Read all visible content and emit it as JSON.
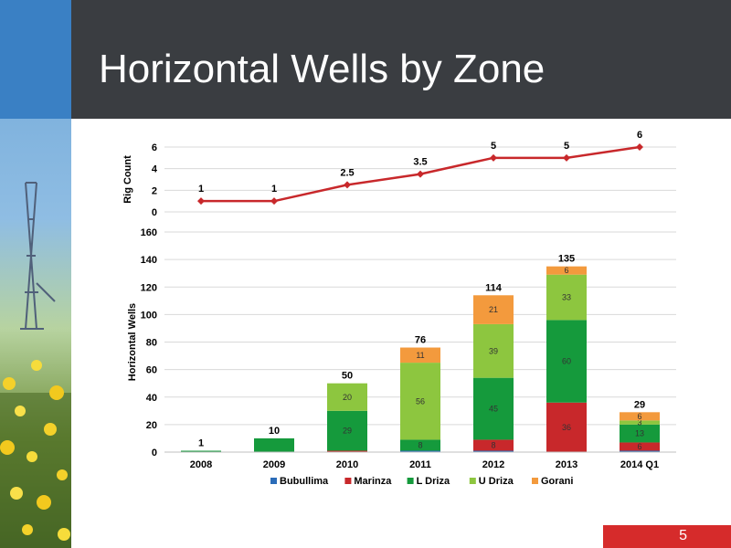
{
  "slide": {
    "title": "Horizontal Wells by Zone",
    "page_number": "5",
    "colors": {
      "header_bg": "#3a3d41",
      "accent_blue": "#3a80c4",
      "page_badge": "#d62b2b"
    },
    "images": [
      "oil-rig-photo",
      "yellow-wildflowers-photo"
    ]
  },
  "chart_data": [
    {
      "type": "line",
      "ylabel": "Rig Count",
      "ylim": [
        0,
        6
      ],
      "yticks": [
        0,
        2,
        4,
        6
      ],
      "categories": [
        "2008",
        "2009",
        "2010",
        "2011",
        "2012",
        "2013",
        "2014 Q1"
      ],
      "series": [
        {
          "values": [
            1,
            1,
            2.5,
            3.5,
            5,
            5,
            6
          ],
          "labels": [
            "1",
            "1",
            "2.5",
            "3.5",
            "5",
            "5",
            "6"
          ],
          "color": "#c8282b"
        }
      ],
      "grid": true
    },
    {
      "type": "bar",
      "stacked": true,
      "ylabel": "Horizontal Wells",
      "ylim": [
        0,
        160
      ],
      "yticks": [
        0,
        20,
        40,
        60,
        80,
        100,
        120,
        140,
        160
      ],
      "categories": [
        "2008",
        "2009",
        "2010",
        "2011",
        "2012",
        "2013",
        "2014 Q1"
      ],
      "series": [
        {
          "name": "Bubullima",
          "color": "#2b6cb8",
          "values": [
            0,
            0,
            0,
            1,
            1,
            0,
            1
          ],
          "labels": [
            "",
            "",
            "",
            "",
            "",
            "",
            ""
          ]
        },
        {
          "name": "Marinza",
          "color": "#c8282b",
          "values": [
            0,
            0,
            1,
            0,
            8,
            36,
            6
          ],
          "labels": [
            "",
            "",
            "",
            "",
            "8",
            "36",
            "6"
          ]
        },
        {
          "name": "L Driza",
          "color": "#159a3c",
          "values": [
            1,
            10,
            29,
            8,
            45,
            60,
            13
          ],
          "labels": [
            "",
            "",
            "29",
            "8",
            "45",
            "60",
            "13"
          ]
        },
        {
          "name": "U Driza",
          "color": "#8dc63f",
          "values": [
            0,
            0,
            20,
            56,
            39,
            33,
            3
          ],
          "labels": [
            "",
            "",
            "20",
            "56",
            "39",
            "33",
            "3"
          ]
        },
        {
          "name": "Gorani",
          "color": "#f39a3d",
          "values": [
            0,
            0,
            0,
            11,
            21,
            6,
            6
          ],
          "labels": [
            "",
            "",
            "",
            "11",
            "21",
            "6",
            "6"
          ]
        }
      ],
      "totals": [
        1,
        10,
        50,
        76,
        114,
        135,
        29
      ],
      "legend": "bottom",
      "grid": true
    }
  ]
}
